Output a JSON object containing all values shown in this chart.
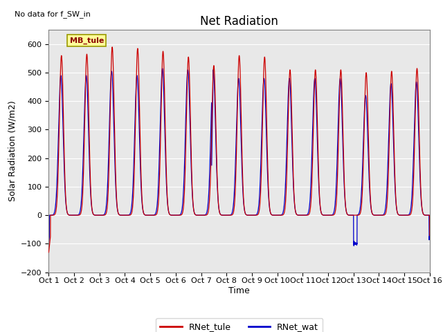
{
  "title": "Net Radiation",
  "ylabel": "Solar Radiation (W/m2)",
  "xlabel": "Time",
  "ylim": [
    -200,
    650
  ],
  "yticks": [
    -200,
    -100,
    0,
    100,
    200,
    300,
    400,
    500,
    600
  ],
  "xlim": [
    0,
    15
  ],
  "xtick_labels": [
    "Oct 1",
    "Oct 2",
    "Oct 3",
    "Oct 4",
    "Oct 5",
    "Oct 6",
    "Oct 7",
    "Oct 8",
    "Oct 9",
    "Oct 10",
    "Oct 11",
    "Oct 12",
    "Oct 13",
    "Oct 14",
    "Oct 15",
    "Oct 16"
  ],
  "annotation_text": "No data for f_SW_in",
  "legend_box_text": "MB_tule",
  "legend_line1_label": "RNet_tule",
  "legend_line2_label": "RNet_wat",
  "color_tule": "#cc0000",
  "color_wat": "#0000cc",
  "background_color": "#e8e8e8",
  "title_fontsize": 12,
  "label_fontsize": 9,
  "tick_fontsize": 8,
  "n_days": 15,
  "night_value": -75,
  "day_peak_tule": [
    560,
    565,
    590,
    585,
    575,
    555,
    525,
    560,
    555,
    510,
    510,
    510,
    500,
    505,
    515
  ],
  "day_peak_wat": [
    490,
    490,
    505,
    490,
    515,
    510,
    510,
    480,
    480,
    480,
    480,
    480,
    420,
    462,
    468
  ],
  "special_oct1_tule_low": -130
}
